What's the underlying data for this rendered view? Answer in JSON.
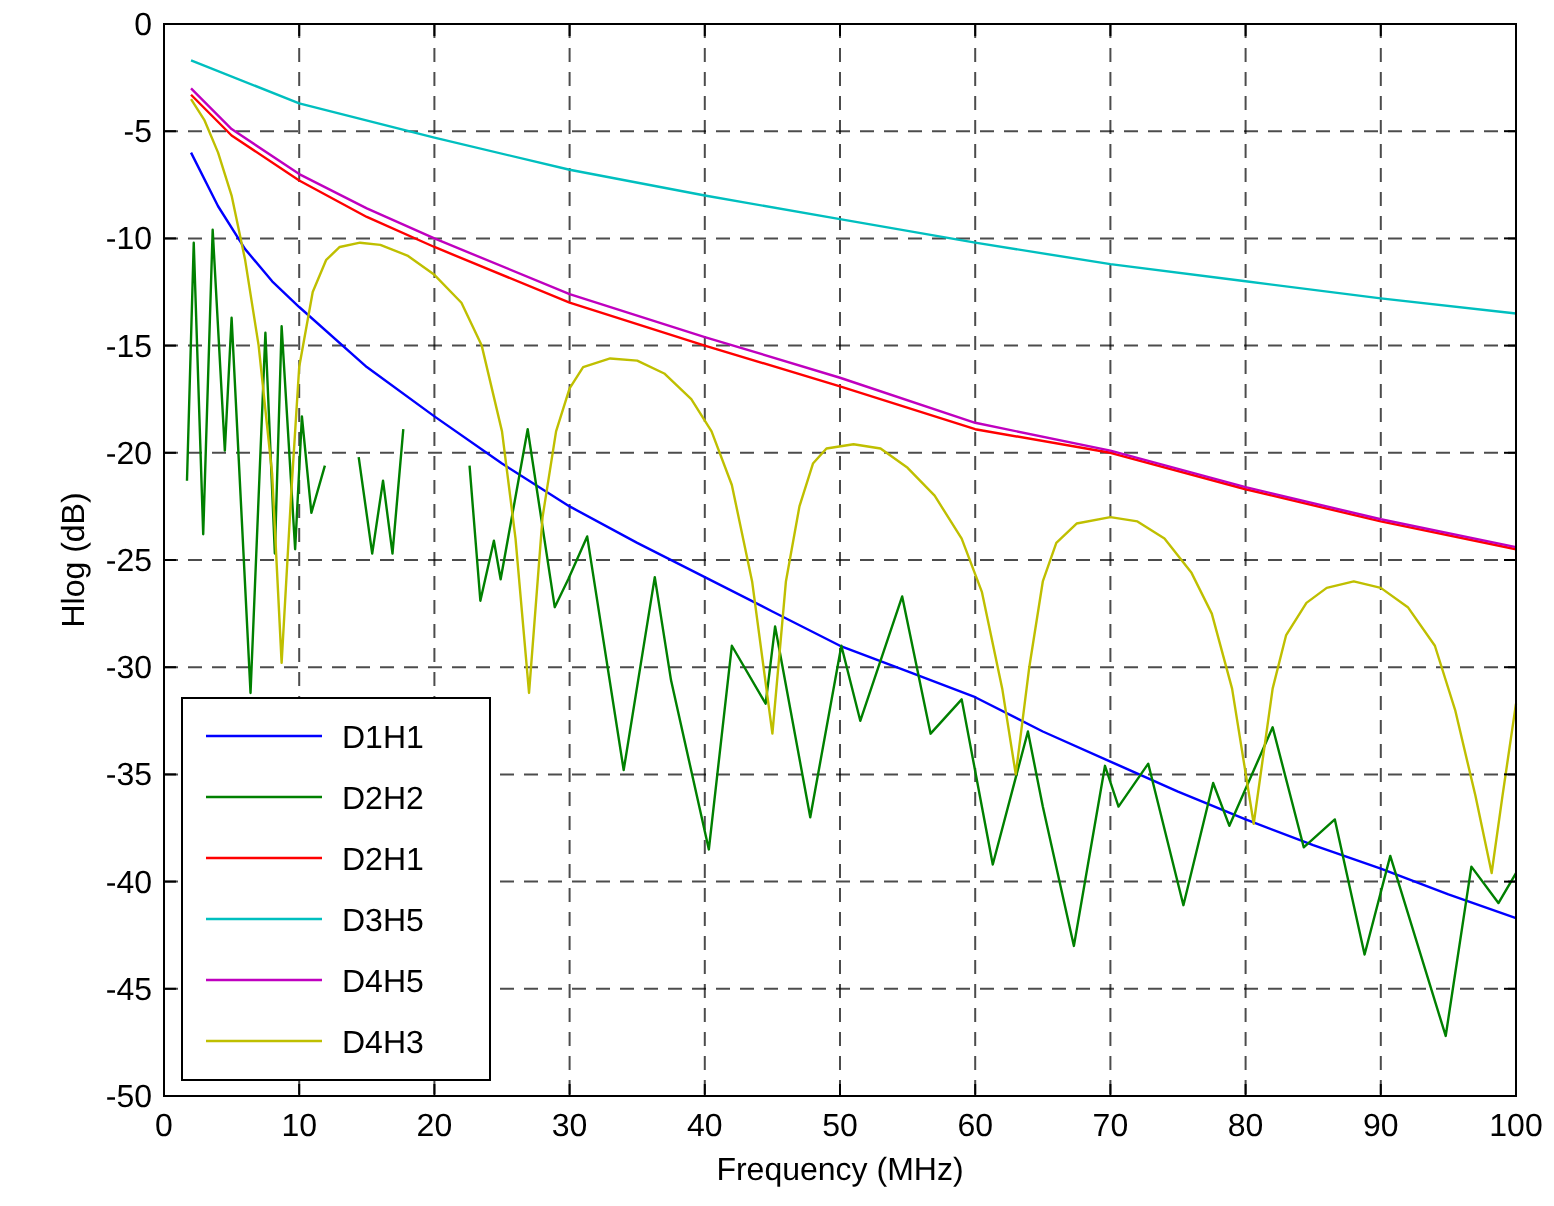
{
  "chart_data": {
    "type": "line",
    "xlabel": "Frequency (MHz)",
    "ylabel": "Hlog (dB)",
    "xlim": [
      0,
      100
    ],
    "ylim": [
      -50,
      0
    ],
    "xticks": [
      0,
      10,
      20,
      30,
      40,
      50,
      60,
      70,
      80,
      90,
      100
    ],
    "yticks": [
      -50,
      -45,
      -40,
      -35,
      -30,
      -25,
      -20,
      -15,
      -10,
      -5,
      0
    ],
    "grid": true,
    "legend": "bottom left",
    "line_style": "solid",
    "marker": "none",
    "series": [
      {
        "name": "D1H1",
        "color": "#0000ff",
        "x": [
          2,
          4,
          6,
          8,
          10,
          15,
          20,
          25,
          30,
          35,
          40,
          45,
          50,
          55,
          60,
          65,
          70,
          75,
          80,
          85,
          90,
          95,
          100
        ],
        "values": [
          -6,
          -8.5,
          -10.5,
          -12,
          -13.2,
          -16,
          -18.3,
          -20.5,
          -22.5,
          -24.2,
          -25.8,
          -27.4,
          -29,
          -30.2,
          -31.4,
          -33,
          -34.4,
          -35.8,
          -37.1,
          -38.3,
          -39.4,
          -40.6,
          -41.7
        ]
      },
      {
        "name": "D2H2",
        "color": "#008000",
        "x": [
          1.7,
          2.2,
          2.9,
          3.6,
          4.5,
          5,
          6.4,
          7.5,
          8.2,
          8.7,
          9.7,
          10.2,
          10.9,
          11.9,
          13.2,
          14.4,
          15.4,
          16.2,
          16.9,
          17.7,
          20.1,
          22.6,
          23.4,
          24.4,
          24.9,
          26.9,
          28.9,
          29.9,
          31.3,
          34,
          36.3,
          37.5,
          40.3,
          42,
          44.5,
          45.2,
          47.8,
          50.1,
          51.5,
          54.6,
          56.7,
          59,
          61.3,
          63.9,
          65,
          67.3,
          69.6,
          70.6,
          72.8,
          75.4,
          77.6,
          78.8,
          82,
          84.3,
          86.6,
          88.8,
          90.7,
          94.8,
          96.7,
          98.7,
          100
        ],
        "values": [
          -21.3,
          -10.2,
          -23.8,
          -9.6,
          -19.9,
          -13.7,
          -31.2,
          -14.4,
          -24.7,
          -14.1,
          -24.5,
          -18.3,
          -22.8,
          -20.6,
          null,
          -20.2,
          -24.7,
          -21.3,
          -24.7,
          -18.9,
          null,
          -20.6,
          -26.9,
          -24.1,
          -25.9,
          -18.9,
          -27.2,
          -25.9,
          -23.9,
          -34.8,
          -25.8,
          -30.6,
          -38.5,
          -29,
          -31.7,
          -28.1,
          -37,
          -29,
          -32.5,
          -26.7,
          -33.1,
          -31.5,
          -39.2,
          -33,
          -36.5,
          -43,
          -34.6,
          -36.5,
          -34.5,
          -41.1,
          -35.4,
          -37.4,
          -32.8,
          -38.4,
          -37.1,
          -43.4,
          -38.8,
          -47.2,
          -39.3,
          -41,
          -39.6
        ]
      },
      {
        "name": "D2H1",
        "color": "#ff0000",
        "x": [
          2,
          5,
          10,
          15,
          20,
          30,
          40,
          50,
          60,
          70,
          80,
          90,
          100
        ],
        "values": [
          -3.3,
          -5.2,
          -7.3,
          -9,
          -10.4,
          -13,
          -15,
          -16.9,
          -18.9,
          -20,
          -21.7,
          -23.2,
          -24.5
        ]
      },
      {
        "name": "D3H5",
        "color": "#00bfbf",
        "x": [
          2,
          10,
          20,
          30,
          40,
          50,
          60,
          70,
          80,
          90,
          100
        ],
        "values": [
          -1.7,
          -3.7,
          -5.3,
          -6.8,
          -8,
          -9.1,
          -10.2,
          -11.2,
          -12,
          -12.8,
          -13.5
        ]
      },
      {
        "name": "D4H5",
        "color": "#bf00bf",
        "x": [
          2,
          5,
          10,
          15,
          20,
          30,
          40,
          50,
          60,
          70,
          80,
          90,
          100
        ],
        "values": [
          -3,
          -4.9,
          -7,
          -8.6,
          -10,
          -12.6,
          -14.6,
          -16.5,
          -18.6,
          -19.9,
          -21.6,
          -23.1,
          -24.4
        ]
      },
      {
        "name": "D4H3",
        "color": "#bfbf00",
        "x": [
          2,
          3,
          4,
          5,
          6,
          7,
          8,
          8.7,
          9.4,
          10,
          11,
          12,
          13,
          14.5,
          16,
          18,
          20,
          22,
          23.5,
          25,
          26,
          27,
          28,
          29,
          30,
          31,
          33,
          35,
          37,
          39,
          40.5,
          42,
          43.5,
          45,
          46,
          47,
          48,
          49,
          51,
          53,
          55,
          57,
          59,
          60.5,
          62,
          63,
          64,
          65,
          66,
          67.5,
          70,
          72,
          74,
          76,
          77.5,
          79,
          80.6,
          82,
          83,
          84.5,
          86,
          88,
          90,
          92,
          94,
          95.5,
          97,
          98.2,
          99,
          100
        ],
        "values": [
          -3.5,
          -4.5,
          -6,
          -8,
          -11,
          -15,
          -21,
          -29.8,
          -22,
          -16,
          -12.5,
          -11,
          -10.4,
          -10.2,
          -10.3,
          -10.8,
          -11.7,
          -13,
          -15,
          -19,
          -24,
          -31.2,
          -23,
          -19,
          -17,
          -16,
          -15.6,
          -15.7,
          -16.3,
          -17.5,
          -19,
          -21.5,
          -26,
          -33.1,
          -26,
          -22.5,
          -20.5,
          -19.8,
          -19.6,
          -19.8,
          -20.7,
          -22,
          -24,
          -26.5,
          -31,
          -35,
          -30,
          -26,
          -24.2,
          -23.3,
          -23,
          -23.2,
          -24,
          -25.6,
          -27.5,
          -31,
          -37.3,
          -31,
          -28.5,
          -27,
          -26.3,
          -26,
          -26.3,
          -27.2,
          -29,
          -32,
          -36,
          -39.6,
          -36,
          -31.7
        ]
      }
    ]
  }
}
